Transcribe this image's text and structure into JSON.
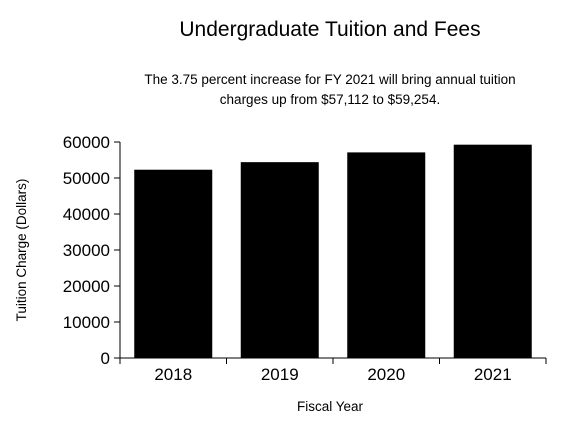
{
  "chart_data": {
    "type": "bar",
    "title": "Undergraduate Tuition and Fees",
    "subtitle_lines": [
      "The 3.75 percent increase for FY 2021 will bring annual tuition",
      "charges up from $57,112 to $59,254."
    ],
    "xlabel": "Fiscal Year",
    "ylabel": "Tuition Charge (Dollars)",
    "categories": [
      "2018",
      "2019",
      "2020",
      "2021"
    ],
    "values": [
      52300,
      54400,
      57112,
      59254
    ],
    "ylim": [
      0,
      60000
    ],
    "yticks": [
      0,
      10000,
      20000,
      30000,
      40000,
      50000,
      60000
    ],
    "ytick_labels": [
      "0",
      "10000",
      "20000",
      "30000",
      "40000",
      "50000",
      "60000"
    ],
    "grid": false,
    "legend": "none",
    "bar_color": "#000000"
  }
}
